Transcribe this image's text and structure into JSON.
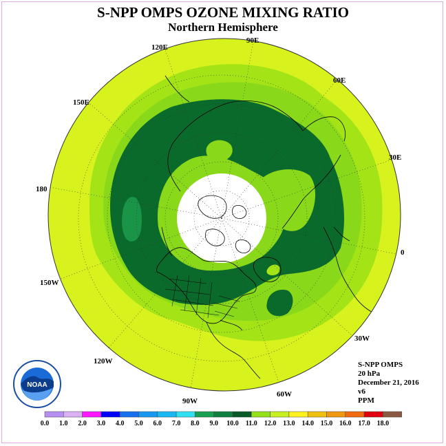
{
  "title": "S-NPP OMPS OZONE MIXING RATIO",
  "subtitle": "Northern Hemisphere",
  "longitude_labels": [
    {
      "text": "90E",
      "lon": 90
    },
    {
      "text": "60E",
      "lon": 60
    },
    {
      "text": "30E",
      "lon": 30
    },
    {
      "text": "0",
      "lon": 0
    },
    {
      "text": "30W",
      "lon": -30
    },
    {
      "text": "60W",
      "lon": -60
    },
    {
      "text": "90W",
      "lon": -90
    },
    {
      "text": "120W",
      "lon": -120
    },
    {
      "text": "150W",
      "lon": -150
    },
    {
      "text": "180",
      "lon": 180
    },
    {
      "text": "150E",
      "lon": 150
    },
    {
      "text": "120E",
      "lon": 120
    }
  ],
  "info": {
    "instrument": "S-NPP OMPS",
    "pressure": "20 hPa",
    "date": "December 21, 2016",
    "version": "v6",
    "units": "PPM"
  },
  "logo": {
    "text": "NOAA"
  },
  "colorbar": {
    "labels": [
      "0.0",
      "1.0",
      "2.0",
      "3.0",
      "4.0",
      "5.0",
      "6.0",
      "7.0",
      "8.0",
      "9.0",
      "10.0",
      "11.0",
      "12.0",
      "13.0",
      "14.0",
      "15.0",
      "16.0",
      "17.0",
      "18.0"
    ],
    "colors": [
      "#b78ff0",
      "#dcb0f5",
      "#ff18ff",
      "#0000ff",
      "#1870f0",
      "#1898f0",
      "#18b8f0",
      "#30e0f0",
      "#18a050",
      "#108040",
      "#0a5a28",
      "#96e01a",
      "#c8f020",
      "#fff020",
      "#f0c010",
      "#f09810",
      "#f06a10",
      "#e00010",
      "#8c5a40"
    ]
  },
  "map_colors": {
    "level_12_13": "#d8f21e",
    "level_11_12": "#a4e416",
    "level_10_11": "#8ad81a",
    "level_9_10": "#0a6a2c",
    "level_8_9": "#1a9446",
    "polar_night": "#ffffff"
  }
}
